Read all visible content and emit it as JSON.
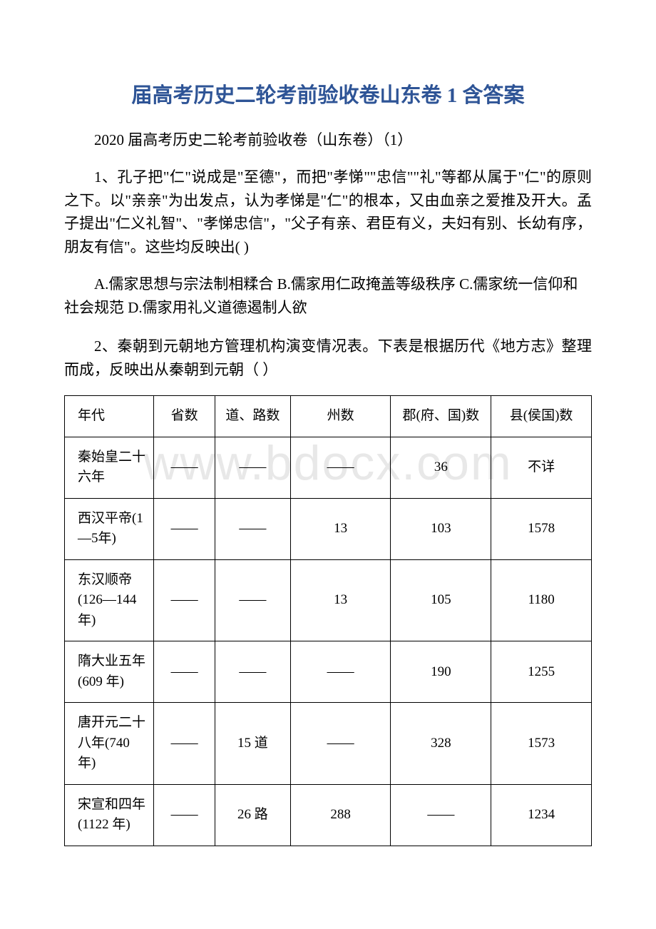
{
  "title": "届高考历史二轮考前验收卷山东卷 1 含答案",
  "subtitle": "2020 届高考历史二轮考前验收卷（山东卷）（1）",
  "q1": {
    "text": "1、孔子把\"仁\"说成是\"至德\"，而把\"孝悌\"\"忠信\"\"礼\"等都从属于\"仁\"的原则之下。以\"亲亲\"为出发点，认为孝悌是\"仁\"的根本，又由血亲之爱推及开大。孟子提出\"仁义礼智\"、\"孝悌忠信\"，\"父子有亲、君臣有义，夫妇有别、长幼有序，朋友有信\"。这些均反映出(  )",
    "options": "A.儒家思想与宗法制相糅合 B.儒家用仁政掩盖等级秩序 C.儒家统一信仰和社会规范 D.儒家用礼义道德遏制人欲"
  },
  "q2": {
    "text": "2、秦朝到元朝地方管理机构演变情况表。下表是根据历代《地方志》整理而成，反映出从秦朝到元朝（ ）"
  },
  "watermark": "www.bdocx.com",
  "table": {
    "headers": {
      "era": "年代",
      "province": "省数",
      "dao": "道、路数",
      "zhou": "州数",
      "jun": "郡(府、国)数",
      "xian": "县(侯国)数"
    },
    "rows": [
      {
        "era": "秦始皇二十六年",
        "province": "——",
        "dao": "——",
        "zhou": "——",
        "jun": "36",
        "xian": "不详"
      },
      {
        "era": "西汉平帝(1—5年)",
        "province": "——",
        "dao": "——",
        "zhou": "13",
        "jun": "103",
        "xian": "1578"
      },
      {
        "era": "东汉顺帝(126—144年)",
        "province": "——",
        "dao": "——",
        "zhou": "13",
        "jun": "105",
        "xian": "1180"
      },
      {
        "era": "隋大业五年(609 年)",
        "province": "——",
        "dao": "——",
        "zhou": "——",
        "jun": "190",
        "xian": "1255"
      },
      {
        "era": "唐开元二十八年(740 年)",
        "province": "——",
        "dao": "15 道",
        "zhou": "——",
        "jun": "328",
        "xian": "1573"
      },
      {
        "era": "宋宣和四年(1122 年)",
        "province": "——",
        "dao": "26 路",
        "zhou": "288",
        "jun": "——",
        "xian": "1234"
      }
    ]
  }
}
